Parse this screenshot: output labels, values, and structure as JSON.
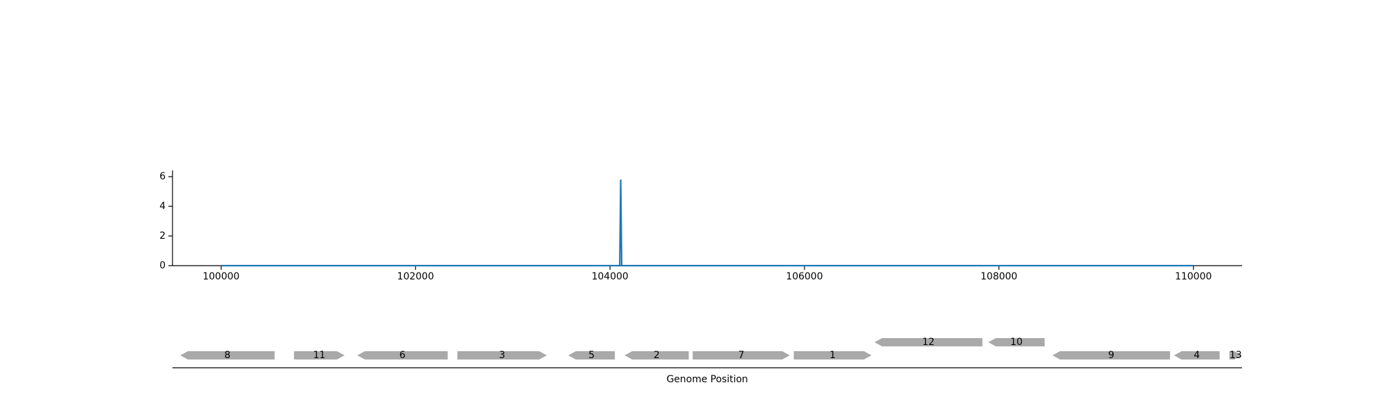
{
  "chart_data": [
    {
      "type": "line",
      "x": [
        100000,
        104100,
        104110,
        104120,
        104130,
        110000
      ],
      "y": [
        0,
        0,
        5.8,
        0,
        0,
        0
      ],
      "xlim": [
        99500,
        110500
      ],
      "ylim": [
        0,
        6.4
      ],
      "x_ticks": [
        100000,
        102000,
        104000,
        106000,
        108000,
        110000
      ],
      "y_ticks": [
        0,
        2,
        4,
        6
      ],
      "color": "#1f77b4",
      "grid": false
    },
    {
      "type": "gene-track",
      "xlabel": "Genome Position",
      "color": "#a9a9a9",
      "genes": [
        {
          "label": "8",
          "start": 99580,
          "end": 100550,
          "strand": -1,
          "row": 0
        },
        {
          "label": "11",
          "start": 100750,
          "end": 101270,
          "strand": 1,
          "row": 0
        },
        {
          "label": "6",
          "start": 101400,
          "end": 102330,
          "strand": -1,
          "row": 0
        },
        {
          "label": "3",
          "start": 102430,
          "end": 103350,
          "strand": 1,
          "row": 0
        },
        {
          "label": "5",
          "start": 103570,
          "end": 104050,
          "strand": -1,
          "row": 0
        },
        {
          "label": "2",
          "start": 104150,
          "end": 104810,
          "strand": -1,
          "row": 0
        },
        {
          "label": "7",
          "start": 104850,
          "end": 105850,
          "strand": 1,
          "row": 0
        },
        {
          "label": "1",
          "start": 105890,
          "end": 106690,
          "strand": 1,
          "row": 0
        },
        {
          "label": "12",
          "start": 106720,
          "end": 107830,
          "strand": -1,
          "row": 1
        },
        {
          "label": "10",
          "start": 107890,
          "end": 108470,
          "strand": -1,
          "row": 1
        },
        {
          "label": "9",
          "start": 108550,
          "end": 109760,
          "strand": -1,
          "row": 0
        },
        {
          "label": "4",
          "start": 109800,
          "end": 110270,
          "strand": -1,
          "row": 0
        },
        {
          "label": "13",
          "start": 110370,
          "end": 110500,
          "strand": 1,
          "row": 0
        }
      ]
    }
  ]
}
